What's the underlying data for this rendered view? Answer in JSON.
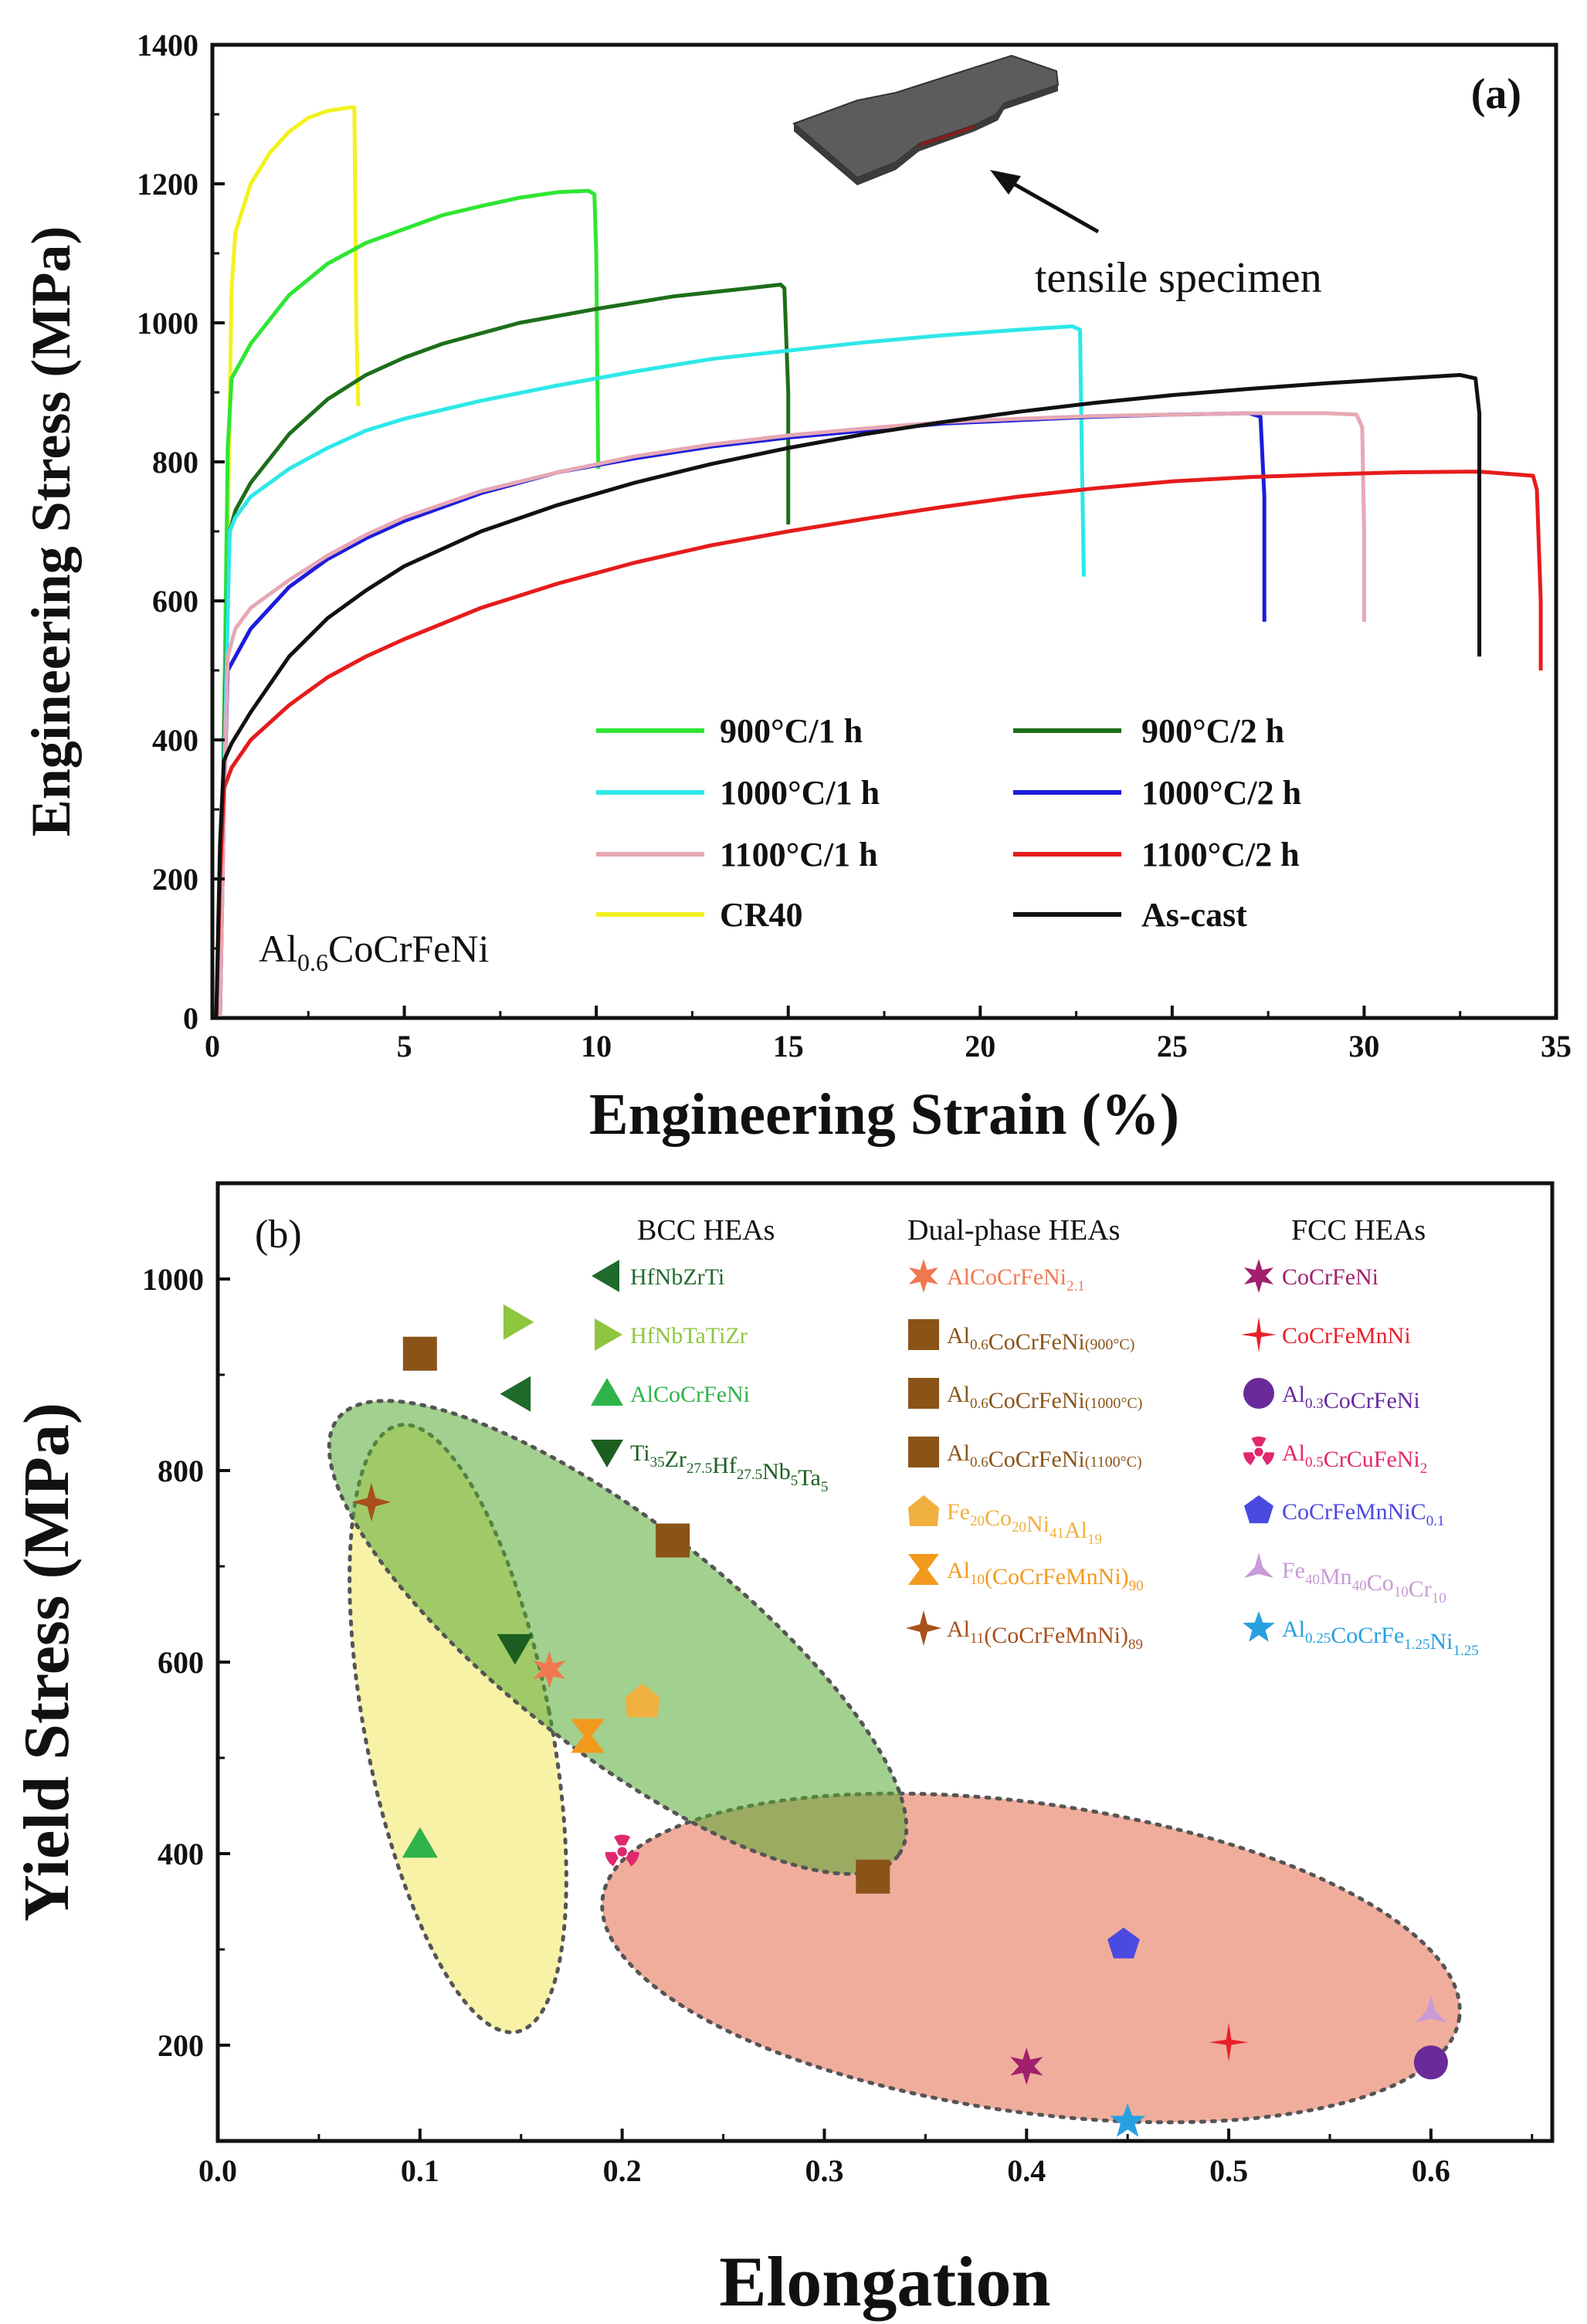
{
  "chart_data": [
    {
      "type": "line",
      "panel_label": "(a)",
      "xlabel": "Engineering Strain (%)",
      "ylabel": "Engineering Stress (MPa)",
      "xlim": [
        0,
        35
      ],
      "ylim": [
        0,
        1400
      ],
      "xticks": [
        0,
        5,
        10,
        15,
        20,
        25,
        30,
        35
      ],
      "yticks": [
        0,
        200,
        400,
        600,
        800,
        1000,
        1200,
        1400
      ],
      "material_label": {
        "prefix": "Al",
        "sub": "0.6",
        "suffix": "CoCrFeNi"
      },
      "inset_label": "tensile specimen",
      "series": [
        {
          "name": "CR40",
          "color": "#f2f21e",
          "points": [
            [
              0.2,
              0
            ],
            [
              0.3,
              300
            ],
            [
              0.4,
              700
            ],
            [
              0.5,
              1050
            ],
            [
              0.6,
              1130
            ],
            [
              1,
              1200
            ],
            [
              1.5,
              1245
            ],
            [
              2,
              1275
            ],
            [
              2.5,
              1295
            ],
            [
              3,
              1305
            ],
            [
              3.6,
              1310
            ],
            [
              3.7,
              1310
            ],
            [
              3.75,
              1000
            ],
            [
              3.8,
              880
            ]
          ]
        },
        {
          "name": "900°C/1 h",
          "color": "#2ee632",
          "points": [
            [
              0.2,
              0
            ],
            [
              0.3,
              400
            ],
            [
              0.4,
              820
            ],
            [
              0.5,
              920
            ],
            [
              1,
              970
            ],
            [
              2,
              1040
            ],
            [
              3,
              1085
            ],
            [
              4,
              1115
            ],
            [
              5,
              1135
            ],
            [
              6,
              1155
            ],
            [
              7,
              1168
            ],
            [
              8,
              1180
            ],
            [
              9,
              1188
            ],
            [
              9.8,
              1190
            ],
            [
              9.95,
              1185
            ],
            [
              10,
              1100
            ],
            [
              10.05,
              790
            ]
          ]
        },
        {
          "name": "900°C/2 h",
          "color": "#1e6e1a",
          "points": [
            [
              0.2,
              0
            ],
            [
              0.3,
              400
            ],
            [
              0.45,
              700
            ],
            [
              0.6,
              730
            ],
            [
              1,
              770
            ],
            [
              2,
              840
            ],
            [
              3,
              890
            ],
            [
              4,
              925
            ],
            [
              5,
              950
            ],
            [
              6,
              970
            ],
            [
              8,
              1000
            ],
            [
              10,
              1020
            ],
            [
              12,
              1038
            ],
            [
              14,
              1050
            ],
            [
              14.8,
              1055
            ],
            [
              14.9,
              1050
            ],
            [
              15,
              900
            ],
            [
              15,
              710
            ]
          ]
        },
        {
          "name": "1000°C/1 h",
          "color": "#2ee8e8",
          "points": [
            [
              0.2,
              0
            ],
            [
              0.3,
              350
            ],
            [
              0.45,
              700
            ],
            [
              0.6,
              720
            ],
            [
              1,
              750
            ],
            [
              2,
              790
            ],
            [
              3,
              820
            ],
            [
              4,
              845
            ],
            [
              5,
              862
            ],
            [
              7,
              888
            ],
            [
              9,
              910
            ],
            [
              11,
              930
            ],
            [
              13,
              948
            ],
            [
              15,
              960
            ],
            [
              17,
              972
            ],
            [
              19,
              982
            ],
            [
              21,
              990
            ],
            [
              22.4,
              995
            ],
            [
              22.6,
              990
            ],
            [
              22.65,
              800
            ],
            [
              22.7,
              635
            ]
          ]
        },
        {
          "name": "1000°C/2 h",
          "color": "#1c1cdc",
          "points": [
            [
              0.2,
              0
            ],
            [
              0.3,
              300
            ],
            [
              0.4,
              500
            ],
            [
              0.6,
              520
            ],
            [
              1,
              560
            ],
            [
              2,
              620
            ],
            [
              3,
              660
            ],
            [
              4,
              690
            ],
            [
              5,
              715
            ],
            [
              7,
              755
            ],
            [
              9,
              785
            ],
            [
              11,
              805
            ],
            [
              13,
              822
            ],
            [
              15,
              835
            ],
            [
              17,
              845
            ],
            [
              19,
              855
            ],
            [
              21,
              860
            ],
            [
              23,
              865
            ],
            [
              25,
              868
            ],
            [
              27,
              870
            ],
            [
              27.3,
              865
            ],
            [
              27.4,
              750
            ],
            [
              27.4,
              570
            ]
          ]
        },
        {
          "name": "1100°C/1 h",
          "color": "#e6a8b4",
          "points": [
            [
              0.2,
              0
            ],
            [
              0.3,
              300
            ],
            [
              0.4,
              520
            ],
            [
              0.6,
              560
            ],
            [
              1,
              590
            ],
            [
              2,
              630
            ],
            [
              3,
              665
            ],
            [
              4,
              695
            ],
            [
              5,
              720
            ],
            [
              7,
              758
            ],
            [
              9,
              785
            ],
            [
              11,
              808
            ],
            [
              13,
              825
            ],
            [
              15,
              838
            ],
            [
              17,
              848
            ],
            [
              19,
              857
            ],
            [
              21,
              862
            ],
            [
              23,
              866
            ],
            [
              25,
              868
            ],
            [
              27,
              870
            ],
            [
              29,
              870
            ],
            [
              29.8,
              868
            ],
            [
              29.95,
              850
            ],
            [
              30,
              700
            ],
            [
              30,
              570
            ]
          ]
        },
        {
          "name": "1100°C/2 h",
          "color": "#e61c1c",
          "points": [
            [
              0.1,
              0
            ],
            [
              0.2,
              200
            ],
            [
              0.3,
              330
            ],
            [
              0.5,
              360
            ],
            [
              1,
              400
            ],
            [
              2,
              450
            ],
            [
              3,
              490
            ],
            [
              4,
              520
            ],
            [
              5,
              545
            ],
            [
              7,
              590
            ],
            [
              9,
              625
            ],
            [
              11,
              655
            ],
            [
              13,
              680
            ],
            [
              15,
              700
            ],
            [
              17,
              718
            ],
            [
              19,
              735
            ],
            [
              21,
              750
            ],
            [
              23,
              762
            ],
            [
              25,
              772
            ],
            [
              27,
              778
            ],
            [
              29,
              782
            ],
            [
              31,
              785
            ],
            [
              33,
              786
            ],
            [
              34.4,
              780
            ],
            [
              34.5,
              760
            ],
            [
              34.6,
              600
            ],
            [
              34.6,
              500
            ]
          ]
        },
        {
          "name": "As-cast",
          "color": "#111111",
          "points": [
            [
              0.1,
              0
            ],
            [
              0.2,
              250
            ],
            [
              0.3,
              370
            ],
            [
              0.5,
              395
            ],
            [
              1,
              440
            ],
            [
              2,
              520
            ],
            [
              3,
              575
            ],
            [
              4,
              615
            ],
            [
              5,
              650
            ],
            [
              7,
              700
            ],
            [
              9,
              738
            ],
            [
              11,
              770
            ],
            [
              13,
              797
            ],
            [
              15,
              820
            ],
            [
              17,
              840
            ],
            [
              19,
              857
            ],
            [
              21,
              872
            ],
            [
              23,
              885
            ],
            [
              25,
              896
            ],
            [
              27,
              905
            ],
            [
              29,
              913
            ],
            [
              31,
              920
            ],
            [
              32.5,
              925
            ],
            [
              32.9,
              920
            ],
            [
              33,
              870
            ],
            [
              33,
              520
            ]
          ]
        }
      ],
      "legend": {
        "left": [
          "900°C/1 h",
          "1000°C/1 h",
          "1100°C/1 h",
          "CR40"
        ],
        "right": [
          "900°C/2 h",
          "1000°C/2 h",
          "1100°C/2 h",
          "As-cast"
        ]
      }
    },
    {
      "type": "scatter",
      "panel_label": "(b)",
      "xlabel": "Elongation",
      "ylabel": "Yield Stress (MPa)",
      "xlim": [
        0,
        0.66
      ],
      "ylim": [
        100,
        1100
      ],
      "xticks": [
        0.0,
        0.1,
        0.2,
        0.3,
        0.4,
        0.5,
        0.6
      ],
      "yticks": [
        200,
        400,
        600,
        800,
        1000
      ],
      "groups": [
        {
          "name": "BCC HEAs",
          "region_color": "#f5ee8a"
        },
        {
          "name": "Dual-phase HEAs",
          "region_color": "#55aa33"
        },
        {
          "name": "FCC HEAs",
          "region_color": "#e8775a"
        }
      ],
      "points": [
        {
          "group": "BCC HEAs",
          "label": "HfNbZrTi",
          "x": 0.148,
          "y": 880,
          "marker": "tri-left",
          "color": "#1e6b2c"
        },
        {
          "group": "BCC HEAs",
          "label": "HfNbTaTiZr",
          "x": 0.148,
          "y": 955,
          "marker": "tri-right",
          "color": "#8ec63f"
        },
        {
          "group": "BCC HEAs",
          "label": "AlCoCrFeNi",
          "x": 0.1,
          "y": 410,
          "marker": "tri-up",
          "color": "#2fb34a"
        },
        {
          "group": "BCC HEAs",
          "label": "Ti35Zr27.5Hf27.5Nb5Ta5",
          "x": 0.147,
          "y": 615,
          "marker": "tri-down",
          "color": "#1b5e20"
        },
        {
          "group": "Dual-phase HEAs",
          "label": "AlCoCrFeNi2.1",
          "x": 0.164,
          "y": 592,
          "marker": "star6",
          "color": "#f07850"
        },
        {
          "group": "Dual-phase HEAs",
          "label": "Al0.6CoCrFeNi(900°C)",
          "x": 0.1,
          "y": 922,
          "marker": "square",
          "color": "#8a5418"
        },
        {
          "group": "Dual-phase HEAs",
          "label": "Al0.6CoCrFeNi(1000°C)",
          "x": 0.225,
          "y": 727,
          "marker": "square",
          "color": "#8a5418"
        },
        {
          "group": "Dual-phase HEAs",
          "label": "Al0.6CoCrFeNi(1100°C)",
          "x": 0.324,
          "y": 376,
          "marker": "square",
          "color": "#8a5418"
        },
        {
          "group": "Dual-phase HEAs",
          "label": "Fe20Co20Ni41Al19",
          "x": 0.21,
          "y": 560,
          "marker": "pentagon-house",
          "color": "#f0b040"
        },
        {
          "group": "Dual-phase HEAs",
          "label": "Al10(CoCrFeMnNi)90",
          "x": 0.183,
          "y": 523,
          "marker": "bowtie",
          "color": "#f29a1e"
        },
        {
          "group": "Dual-phase HEAs",
          "label": "Al11(CoCrFeMnNi)89",
          "x": 0.076,
          "y": 767,
          "marker": "star4",
          "color": "#a8501c"
        },
        {
          "group": "FCC HEAs",
          "label": "CoCrFeNi",
          "x": 0.4,
          "y": 178,
          "marker": "star6",
          "color": "#a0206e"
        },
        {
          "group": "FCC HEAs",
          "label": "CoCrFeMnNi",
          "x": 0.5,
          "y": 203,
          "marker": "star4thin",
          "color": "#e8202a"
        },
        {
          "group": "FCC HEAs",
          "label": "Al0.3CoCrFeNi",
          "x": 0.6,
          "y": 182,
          "marker": "circle",
          "color": "#6a2a9a"
        },
        {
          "group": "FCC HEAs",
          "label": "Al0.5CrCuFeNi2",
          "x": 0.2,
          "y": 402,
          "marker": "trefoil",
          "color": "#e0286e"
        },
        {
          "group": "FCC HEAs",
          "label": "CoCrFeMnNiC0.1",
          "x": 0.448,
          "y": 305,
          "marker": "pentagon",
          "color": "#4a4ae0"
        },
        {
          "group": "FCC HEAs",
          "label": "Fe40Mn40Co10Cr10",
          "x": 0.6,
          "y": 233,
          "marker": "tripod",
          "color": "#c89ad6"
        },
        {
          "group": "FCC HEAs",
          "label": "Al0.25CoCrFe1.25Ni1.25",
          "x": 0.45,
          "y": 120,
          "marker": "star5",
          "color": "#28a0e0"
        }
      ]
    }
  ]
}
